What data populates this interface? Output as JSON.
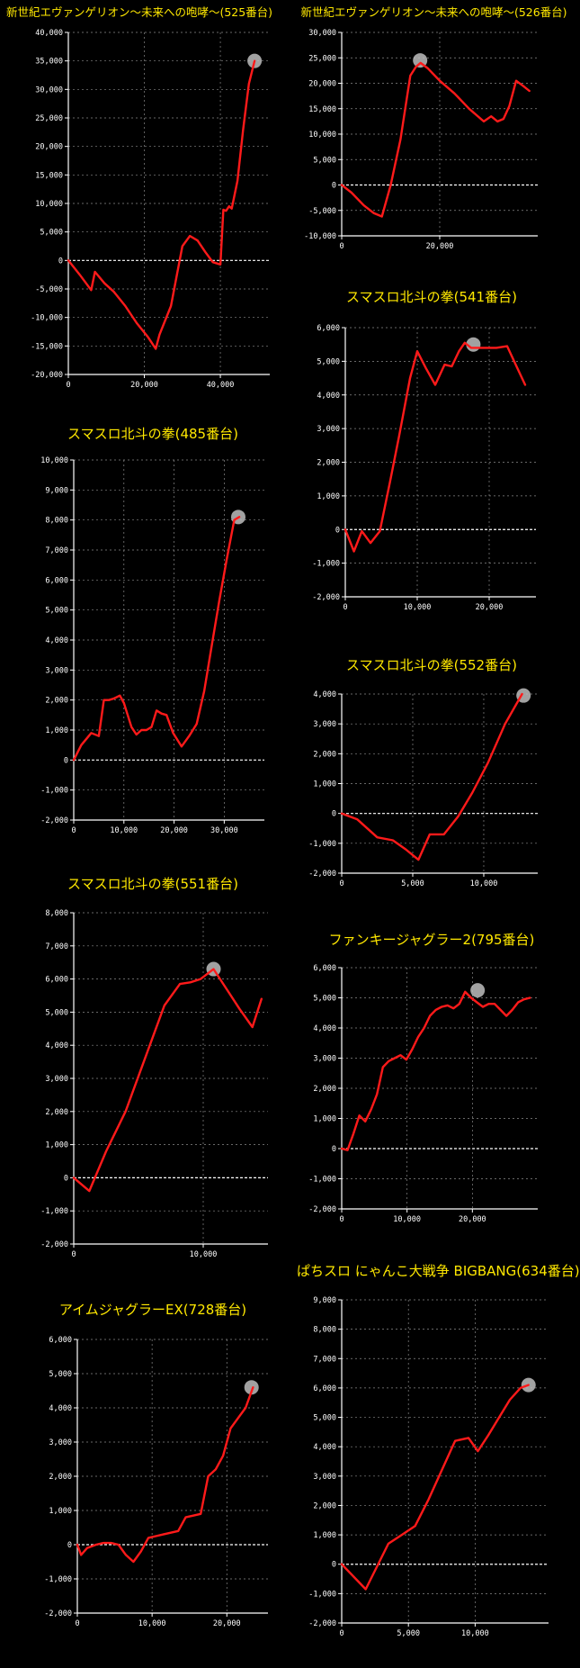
{
  "colors": {
    "background": "#000000",
    "title": "#ffe800",
    "line": "#ff1a1a",
    "grid": "#8a8a8a",
    "zero": "#ffffff",
    "marker": "#bdbdbd"
  },
  "chart_data": [
    {
      "type": "line",
      "title": "新世紀エヴァンゲリオン〜未来への咆哮〜(525番台)",
      "xlim": [
        0,
        53000
      ],
      "ylim": [
        -20000,
        40000
      ],
      "xticks": [
        0,
        20000,
        40000
      ],
      "xtick_labels": [
        "0",
        "20,000",
        "40,000"
      ],
      "yticks": [
        -20000,
        -15000,
        -10000,
        -5000,
        0,
        5000,
        10000,
        15000,
        20000,
        25000,
        30000,
        35000,
        40000
      ],
      "ytick_labels": [
        "-20,000",
        "-15,000",
        "-10,000",
        "-5,000",
        "0",
        "5,000",
        "10,000",
        "15,000",
        "20,000",
        "25,000",
        "30,000",
        "35,000",
        "40,000"
      ],
      "series": [
        {
          "x": [
            0,
            3000,
            6000,
            7000,
            9500,
            12000,
            15000,
            18000,
            21000,
            23000,
            24000,
            27000,
            30000,
            32000,
            34000,
            36000,
            38000,
            40000,
            40800,
            41500,
            42300,
            43000,
            44500,
            46000,
            47500,
            49000
          ],
          "y": [
            0,
            -2500,
            -5200,
            -2000,
            -4000,
            -5500,
            -8000,
            -11000,
            -13500,
            -15500,
            -13000,
            -8000,
            2500,
            4300,
            3500,
            1500,
            -300,
            -700,
            8900,
            8700,
            9500,
            9100,
            14000,
            23000,
            31000,
            35000
          ]
        }
      ],
      "peak_marker": [
        49000,
        35000
      ]
    },
    {
      "type": "line",
      "title": "新世紀エヴァンゲリオン〜未来への咆哮〜(526番台)",
      "xlim": [
        0,
        40000
      ],
      "ylim": [
        -10000,
        30000
      ],
      "xticks": [
        0,
        20000
      ],
      "xtick_labels": [
        "0",
        "20,000"
      ],
      "yticks": [
        -10000,
        -5000,
        0,
        5000,
        10000,
        15000,
        20000,
        25000,
        30000
      ],
      "ytick_labels": [
        "-10,000",
        "-5,000",
        "0",
        "5,000",
        "10,000",
        "15,000",
        "20,000",
        "25,000",
        "30,000"
      ],
      "series": [
        {
          "x": [
            0,
            2000,
            4500,
            6500,
            8200,
            10000,
            12000,
            14000,
            15200,
            16100,
            17500,
            20000,
            23000,
            26000,
            29000,
            30500,
            31800,
            33000,
            34200,
            35600,
            37000,
            38300
          ],
          "y": [
            0,
            -1500,
            -4000,
            -5500,
            -6200,
            0,
            9000,
            21500,
            23300,
            24000,
            23000,
            20500,
            18000,
            15000,
            12500,
            13500,
            12500,
            13000,
            15500,
            20500,
            19500,
            18500
          ]
        }
      ],
      "peak_marker": [
        16000,
        24500
      ]
    },
    {
      "type": "line",
      "title": "スマスロ北斗の拳(541番台)",
      "xlim": [
        0,
        26500
      ],
      "ylim": [
        -2000,
        6000
      ],
      "xticks": [
        0,
        10000,
        20000
      ],
      "xtick_labels": [
        "0",
        "10,000",
        "20,000"
      ],
      "yticks": [
        -2000,
        -1000,
        0,
        1000,
        2000,
        3000,
        4000,
        5000,
        6000
      ],
      "ytick_labels": [
        "-2,000",
        "-1,000",
        "0",
        "1,000",
        "2,000",
        "3,000",
        "4,000",
        "5,000",
        "6,000"
      ],
      "series": [
        {
          "x": [
            0,
            1200,
            2300,
            3500,
            4800,
            6200,
            7500,
            9000,
            10000,
            11200,
            12500,
            13800,
            14800,
            15800,
            16600,
            17500,
            18300,
            19500,
            21000,
            22500,
            23800,
            25000
          ],
          "y": [
            0,
            -650,
            -50,
            -400,
            -50,
            1400,
            2800,
            4500,
            5300,
            4800,
            4300,
            4900,
            4850,
            5300,
            5550,
            5400,
            5400,
            5400,
            5400,
            5450,
            4850,
            4300
          ]
        }
      ],
      "peak_marker": [
        17800,
        5500
      ]
    },
    {
      "type": "line",
      "title": "スマスロ北斗の拳(485番台)",
      "xlim": [
        0,
        38000
      ],
      "ylim": [
        -2000,
        10000
      ],
      "xticks": [
        0,
        10000,
        20000,
        30000
      ],
      "xtick_labels": [
        "0",
        "10,000",
        "20,000",
        "30,000"
      ],
      "yticks": [
        -2000,
        -1000,
        0,
        1000,
        2000,
        3000,
        4000,
        5000,
        6000,
        7000,
        8000,
        9000,
        10000
      ],
      "ytick_labels": [
        "-2,000",
        "-1,000",
        "0",
        "1,000",
        "2,000",
        "3,000",
        "4,000",
        "5,000",
        "6,000",
        "7,000",
        "8,000",
        "9,000",
        "10,000"
      ],
      "series": [
        {
          "x": [
            0,
            1500,
            3500,
            5000,
            6000,
            7000,
            8000,
            9200,
            10000,
            11500,
            12500,
            13500,
            14500,
            15500,
            16500,
            17500,
            18500,
            19800,
            21500,
            23000,
            24500,
            26000,
            27500,
            29000,
            30500,
            32000,
            33000
          ],
          "y": [
            0,
            500,
            900,
            800,
            2000,
            2000,
            2050,
            2150,
            1900,
            1100,
            850,
            1000,
            1000,
            1100,
            1650,
            1550,
            1500,
            900,
            450,
            800,
            1200,
            2300,
            3800,
            5300,
            6700,
            8000,
            8100
          ]
        }
      ],
      "peak_marker": [
        32800,
        8100
      ]
    },
    {
      "type": "line",
      "title": "スマスロ北斗の拳(552番台)",
      "xlim": [
        0,
        13800
      ],
      "ylim": [
        -2000,
        4000
      ],
      "xticks": [
        0,
        5000,
        10000
      ],
      "xtick_labels": [
        "0",
        "5,000",
        "10,000"
      ],
      "yticks": [
        -2000,
        -1000,
        0,
        1000,
        2000,
        3000,
        4000
      ],
      "ytick_labels": [
        "-2,000",
        "-1,000",
        "0",
        "1,000",
        "2,000",
        "3,000",
        "4,000"
      ],
      "series": [
        {
          "x": [
            0,
            1100,
            2500,
            3600,
            4500,
            5400,
            6200,
            7200,
            8200,
            9200,
            10300,
            11500,
            12700
          ],
          "y": [
            0,
            -200,
            -800,
            -900,
            -1200,
            -1550,
            -700,
            -700,
            -100,
            700,
            1700,
            3000,
            4000
          ]
        }
      ],
      "peak_marker": [
        12800,
        3950
      ]
    },
    {
      "type": "line",
      "title": "スマスロ北斗の拳(551番台)",
      "xlim": [
        0,
        15000
      ],
      "ylim": [
        -2000,
        8000
      ],
      "xticks": [
        0,
        10000
      ],
      "xtick_labels": [
        "0",
        "10,000"
      ],
      "yticks": [
        -2000,
        -1000,
        0,
        1000,
        2000,
        3000,
        4000,
        5000,
        6000,
        7000,
        8000
      ],
      "ytick_labels": [
        "-2,000",
        "-1,000",
        "0",
        "1,000",
        "2,000",
        "3,000",
        "4,000",
        "5,000",
        "6,000",
        "7,000",
        "8,000"
      ],
      "series": [
        {
          "x": [
            0,
            1200,
            2500,
            4000,
            5500,
            7000,
            8200,
            9000,
            9800,
            10800,
            11800,
            12800,
            13800,
            14500
          ],
          "y": [
            0,
            -400,
            800,
            2000,
            3600,
            5200,
            5850,
            5900,
            6000,
            6300,
            5700,
            5100,
            4550,
            5400
          ]
        }
      ],
      "peak_marker": [
        10800,
        6300
      ]
    },
    {
      "type": "line",
      "title": "ファンキージャグラー2(795番台)",
      "xlim": [
        0,
        30000
      ],
      "ylim": [
        -2000,
        6000
      ],
      "xticks": [
        0,
        10000,
        20000
      ],
      "xtick_labels": [
        "0",
        "10,000",
        "20,000"
      ],
      "yticks": [
        -2000,
        -1000,
        0,
        1000,
        2000,
        3000,
        4000,
        5000,
        6000
      ],
      "ytick_labels": [
        "-2,000",
        "-1,000",
        "0",
        "1,000",
        "2,000",
        "3,000",
        "4,000",
        "5,000",
        "6,000"
      ],
      "series": [
        {
          "x": [
            0,
            900,
            1800,
            2700,
            3600,
            4500,
            5400,
            6300,
            7200,
            8100,
            9000,
            9900,
            10800,
            11700,
            12600,
            13500,
            14400,
            15300,
            16200,
            17100,
            18000,
            18900,
            19800,
            20700,
            21600,
            22500,
            23400,
            24300,
            25200,
            26100,
            27000,
            27900,
            28800
          ],
          "y": [
            0,
            -50,
            500,
            1100,
            900,
            1300,
            1800,
            2700,
            2900,
            3000,
            3100,
            2950,
            3300,
            3700,
            4000,
            4400,
            4600,
            4700,
            4750,
            4650,
            4800,
            5200,
            5000,
            4850,
            4700,
            4800,
            4800,
            4600,
            4400,
            4600,
            4850,
            4950,
            5000
          ]
        }
      ],
      "peak_marker": [
        20800,
        5250
      ]
    },
    {
      "type": "line",
      "title": "アイムジャグラーEX(728番台)",
      "xlim": [
        0,
        25500
      ],
      "ylim": [
        -2000,
        6000
      ],
      "xticks": [
        0,
        10000,
        20000
      ],
      "xtick_labels": [
        "0",
        "10,000",
        "20,000"
      ],
      "yticks": [
        -2000,
        -1000,
        0,
        1000,
        2000,
        3000,
        4000,
        5000,
        6000
      ],
      "ytick_labels": [
        "-2,000",
        "-1,000",
        "0",
        "1,000",
        "2,000",
        "3,000",
        "4,000",
        "5,000",
        "6,000"
      ],
      "series": [
        {
          "x": [
            0,
            500,
            1300,
            2500,
            3500,
            4500,
            5500,
            6500,
            7500,
            8500,
            9500,
            10500,
            11500,
            12500,
            13500,
            14500,
            15500,
            16500,
            17500,
            18500,
            19500,
            20500,
            21500,
            22500,
            23500
          ],
          "y": [
            0,
            -300,
            -100,
            0,
            50,
            50,
            0,
            -300,
            -500,
            -200,
            200,
            250,
            300,
            350,
            400,
            800,
            850,
            900,
            2000,
            2200,
            2600,
            3400,
            3700,
            4000,
            4600
          ]
        }
      ],
      "peak_marker": [
        23300,
        4600
      ]
    },
    {
      "type": "line",
      "title": "ぱちスロ にゃんこ大戦争 BIGBANG(634番台)",
      "xlim": [
        0,
        15500
      ],
      "ylim": [
        -2000,
        9000
      ],
      "xticks": [
        0,
        5000,
        10000
      ],
      "xtick_labels": [
        "0",
        "5,000",
        "10,000"
      ],
      "yticks": [
        -2000,
        -1000,
        0,
        1000,
        2000,
        3000,
        4000,
        5000,
        6000,
        7000,
        8000,
        9000
      ],
      "ytick_labels": [
        "-2,000",
        "-1,000",
        "0",
        "1,000",
        "2,000",
        "3,000",
        "4,000",
        "5,000",
        "6,000",
        "7,000",
        "8,000",
        "9,000"
      ],
      "series": [
        {
          "x": [
            0,
            1800,
            3500,
            4500,
            5500,
            6500,
            7500,
            8500,
            9500,
            10200,
            11000,
            11800,
            12600,
            13400,
            14000
          ],
          "y": [
            0,
            -850,
            700,
            1000,
            1300,
            2200,
            3200,
            4200,
            4300,
            3850,
            4400,
            5000,
            5600,
            6000,
            6100
          ]
        }
      ],
      "peak_marker": [
        14000,
        6100
      ]
    }
  ]
}
